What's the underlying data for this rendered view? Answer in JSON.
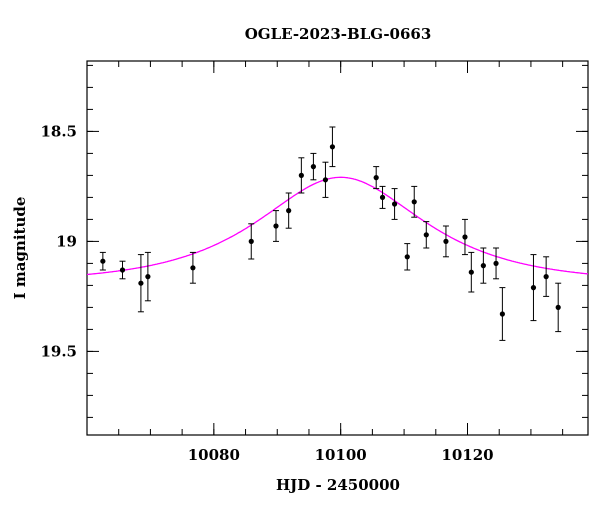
{
  "chart_data": {
    "type": "scatter",
    "title": "OGLE-2023-BLG-0663",
    "xlabel": "HJD - 2450000",
    "ylabel": "I magnitude",
    "xlim": [
      10060,
      10139
    ],
    "ylim": [
      19.88,
      18.18
    ],
    "y_inverted": true,
    "x_ticks": [
      10080,
      10100,
      10120
    ],
    "y_ticks": [
      18.5,
      19,
      19.5
    ],
    "x_minor_step": 5,
    "y_minor_step": 0.1,
    "grid": false,
    "legend": "none",
    "colors": {
      "data": "#000000",
      "model": "#ff00ff",
      "axes": "#000000"
    },
    "series": [
      {
        "kind": "points_with_errors",
        "x": [
          10062.5,
          10065.6,
          10068.5,
          10069.6,
          10076.7,
          10085.9,
          10089.8,
          10091.8,
          10093.8,
          10095.7,
          10097.6,
          10098.7,
          10105.6,
          10106.6,
          10108.5,
          10110.5,
          10111.6,
          10113.5,
          10116.6,
          10119.6,
          10120.6,
          10122.5,
          10124.5,
          10125.5,
          10130.4,
          10132.4,
          10134.3
        ],
        "y": [
          19.09,
          19.13,
          19.19,
          19.16,
          19.12,
          19.0,
          18.93,
          18.86,
          18.7,
          18.66,
          18.72,
          18.57,
          18.71,
          18.8,
          18.83,
          19.07,
          18.82,
          18.97,
          19.0,
          18.98,
          19.14,
          19.11,
          19.1,
          19.33,
          19.21,
          19.16,
          19.3
        ],
        "err": [
          0.04,
          0.04,
          0.13,
          0.11,
          0.07,
          0.08,
          0.07,
          0.08,
          0.08,
          0.06,
          0.08,
          0.09,
          0.05,
          0.05,
          0.07,
          0.06,
          0.07,
          0.06,
          0.07,
          0.08,
          0.09,
          0.08,
          0.07,
          0.12,
          0.15,
          0.09,
          0.11
        ]
      },
      {
        "kind": "model_curve",
        "baseline_mag": 19.19,
        "t0": 10100.0,
        "tE": 18.0,
        "u0": 0.78
      }
    ]
  }
}
